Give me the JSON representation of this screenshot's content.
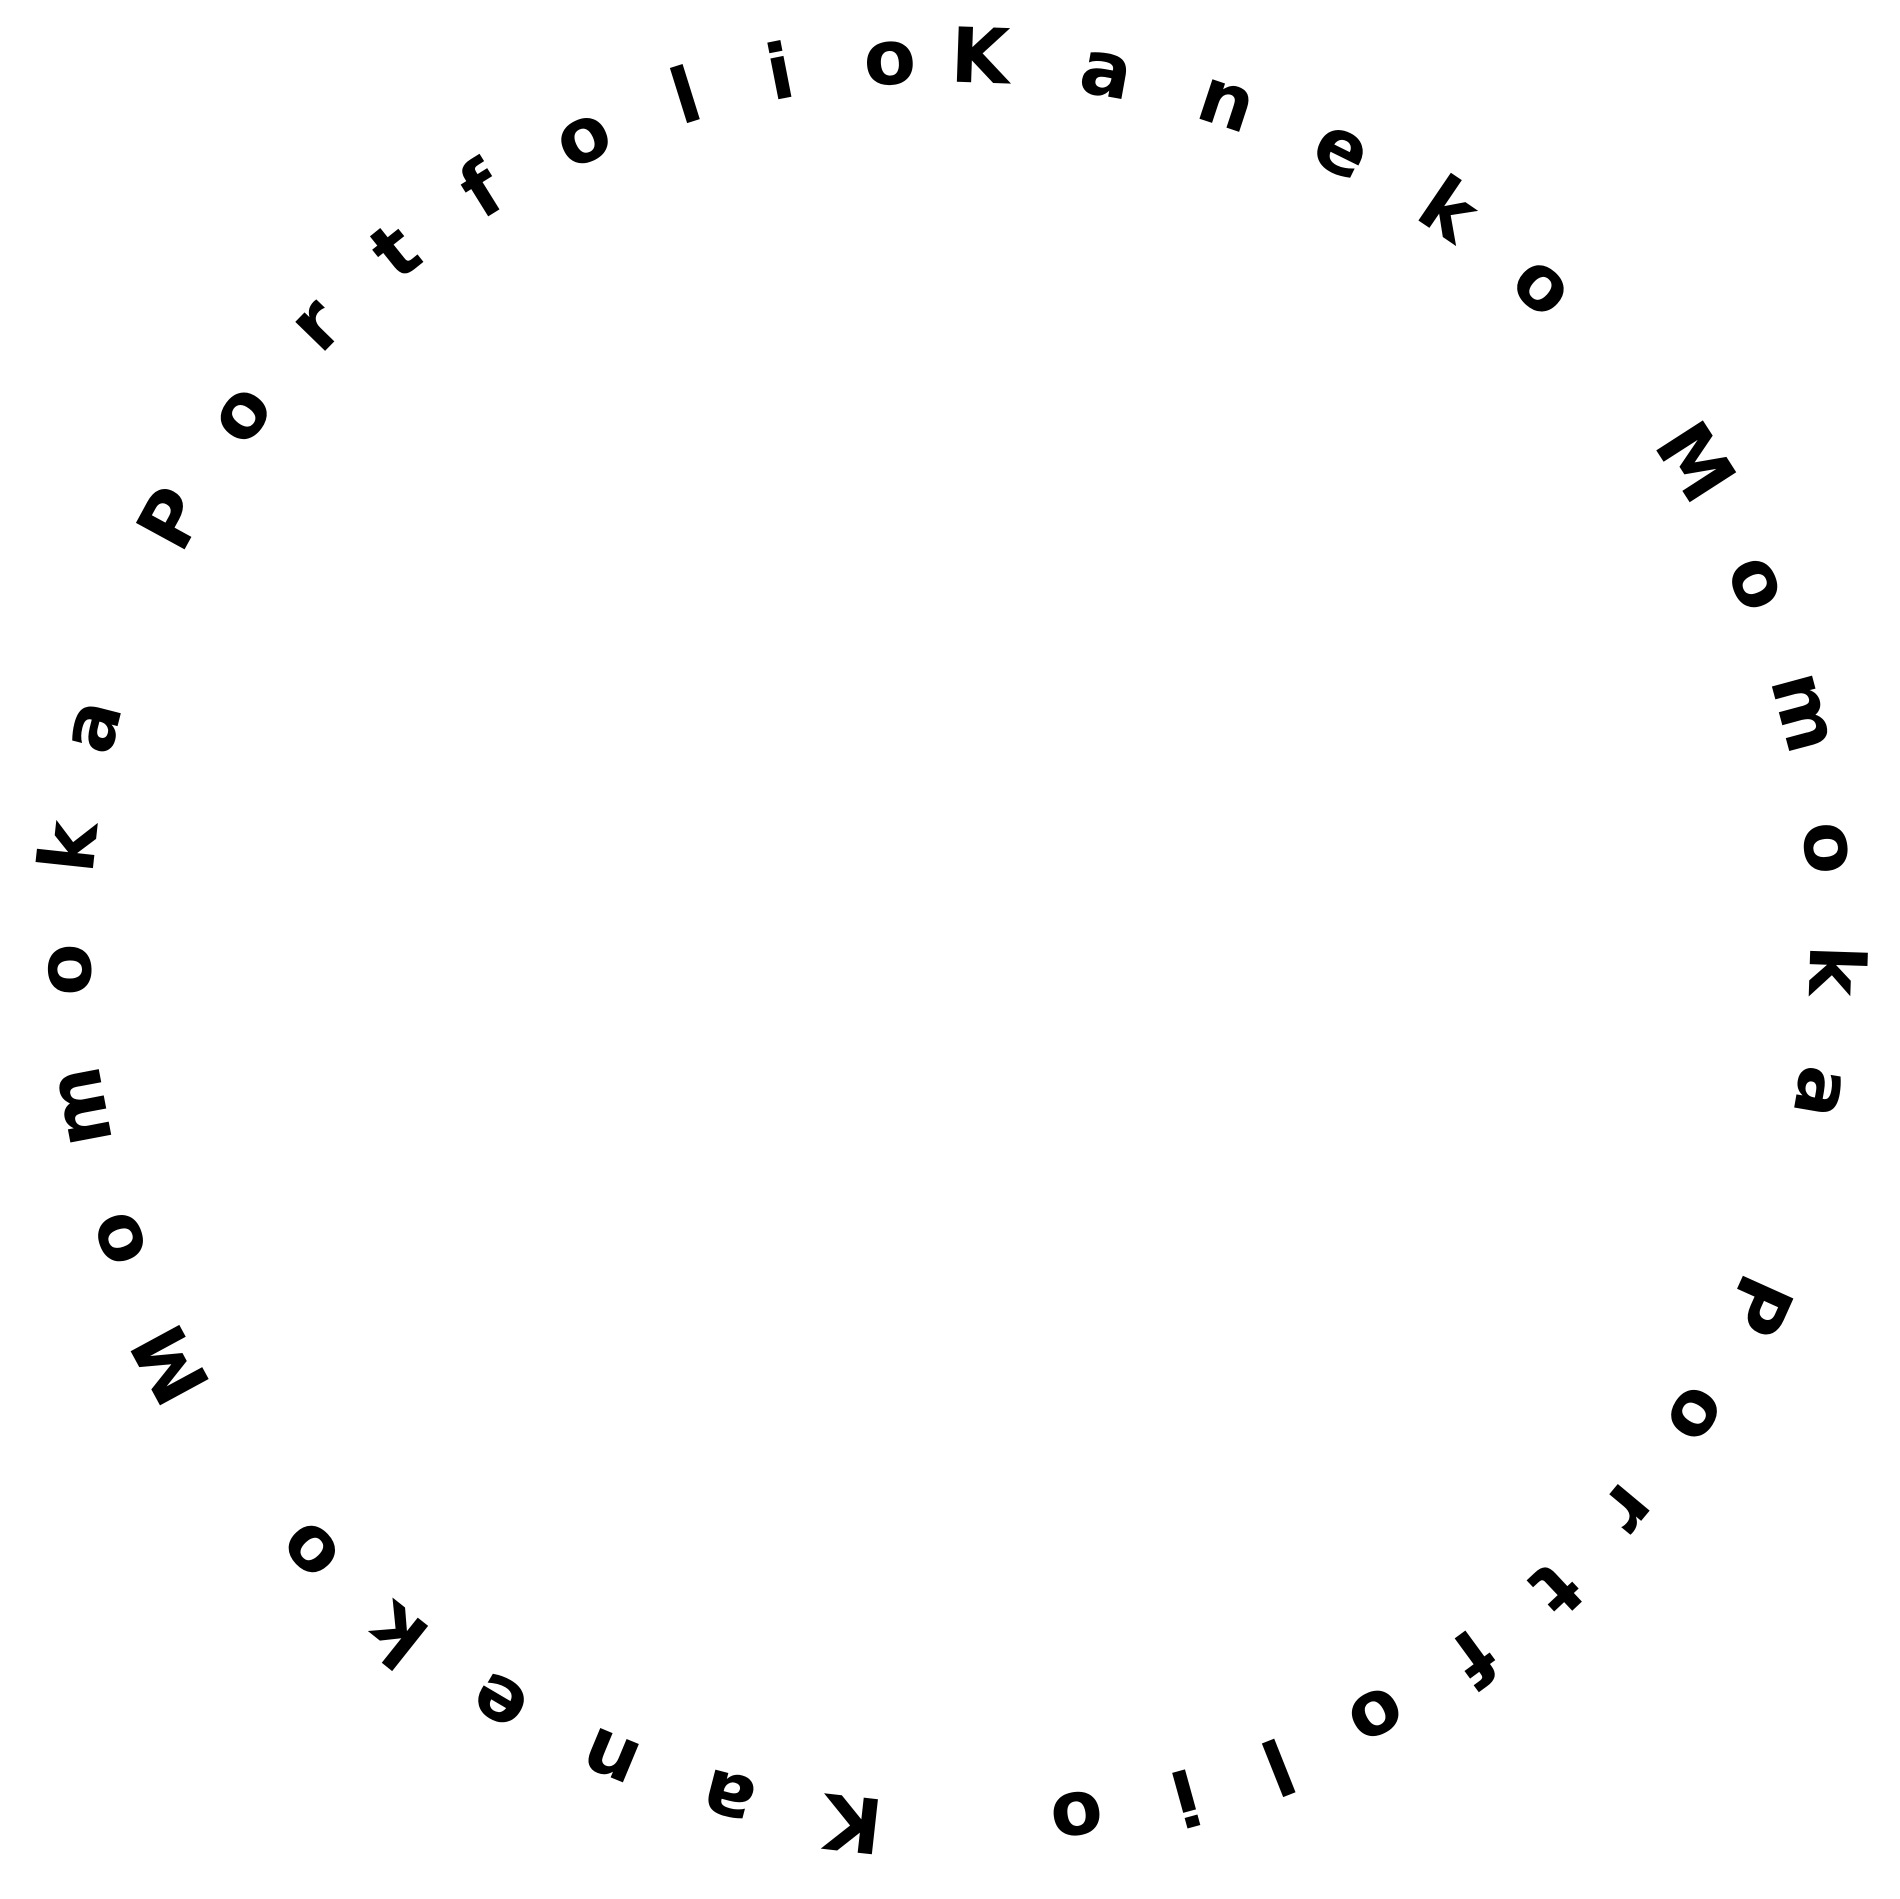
{
  "ring": {
    "text": "Kaneko Momoka Portfolio Kaneko Momoka Portfolio",
    "text_color": "#000000",
    "background_color": "#ffffff"
  }
}
